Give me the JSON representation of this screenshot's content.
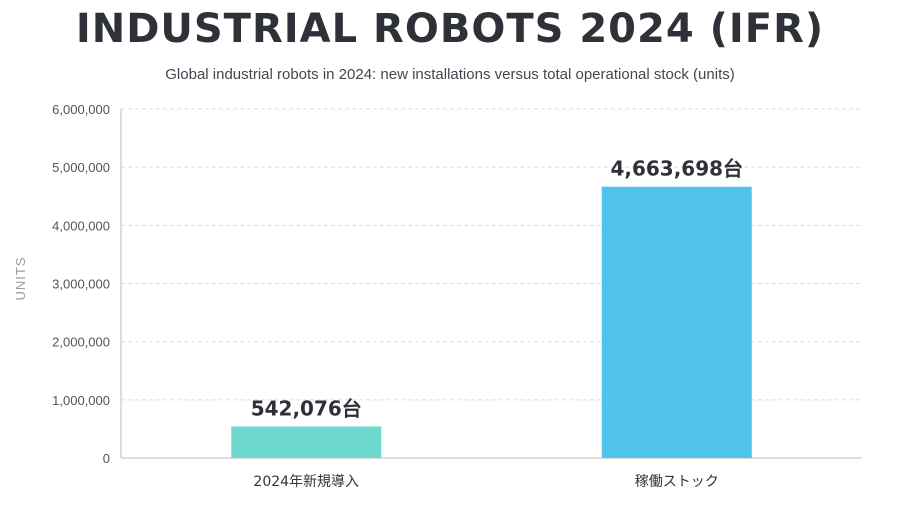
{
  "title": "INDUSTRIAL ROBOTS 2024 (IFR)",
  "subtitle": "Global industrial robots in 2024: new installations versus total operational stock (units)",
  "colors": {
    "bar_installations": "#6dd8cd",
    "bar_stock": "#50c3ea",
    "grid": "#dddddd",
    "axis": "#bbbbbb"
  },
  "chart_data": {
    "type": "bar",
    "categories": [
      "2024年新規導入",
      "稼働ストック"
    ],
    "values": [
      542076,
      4663698
    ],
    "data_labels": [
      "542,076台",
      "4,663,698台"
    ],
    "ylabel": "UNITS",
    "ylim": [
      0,
      6000000
    ],
    "yticks": [
      0,
      1000000,
      2000000,
      3000000,
      4000000,
      5000000,
      6000000
    ],
    "ytick_labels": [
      "0",
      "1,000,000",
      "2,000,000",
      "3,000,000",
      "4,000,000",
      "5,000,000",
      "6,000,000"
    ],
    "grid": true
  }
}
